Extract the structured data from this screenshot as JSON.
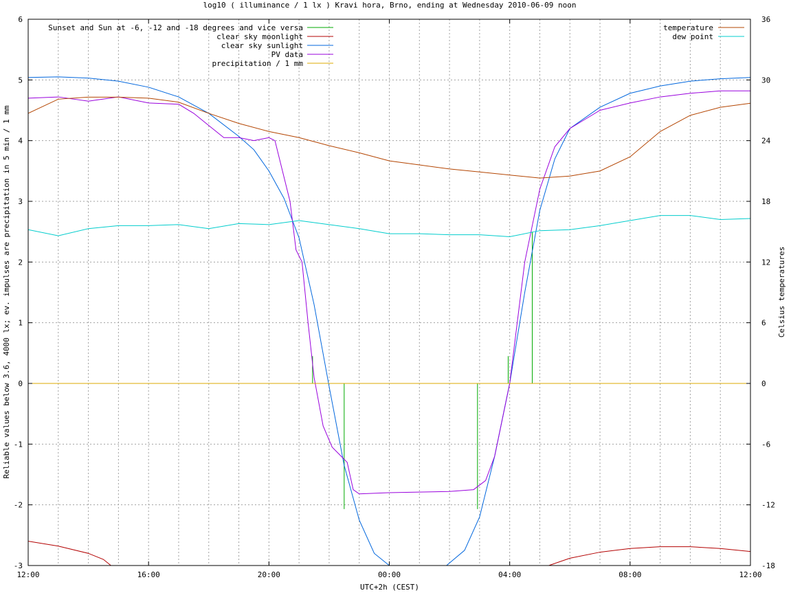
{
  "chart_data": {
    "type": "line",
    "title": "log10 ( illuminance / 1 lx ) Kravi hora, Brno, ending at Wednesday 2010-06-09 noon",
    "xlabel": "UTC+2h (CEST)",
    "ylabel": "Reliable values below 3.6, 4000 lx; ev. impulses are precipitation in 5 min / 1 mm",
    "y2label": "Celsius temperatures",
    "x_unit": "hours since 12:00",
    "xlim": [
      0,
      24
    ],
    "ylim": [
      -3,
      6
    ],
    "y2lim": [
      -18,
      36
    ],
    "x_ticks": [
      "12:00",
      "16:00",
      "20:00",
      "00:00",
      "04:00",
      "08:00",
      "12:00"
    ],
    "y_ticks": [
      "-3",
      "-2",
      "-1",
      "0",
      "1",
      "2",
      "3",
      "4",
      "5",
      "6"
    ],
    "y2_ticks": [
      "-18",
      "-12",
      "-6",
      "0",
      "6",
      "12",
      "18",
      "24",
      "30",
      "36"
    ],
    "grid": true,
    "legend_left_placement": "top-left",
    "legend_right_placement": "top-right",
    "series": [
      {
        "name": "Sunset and Sun at -6, -12 and -18 degrees and vice versa",
        "color": "#00aa00",
        "style": "impulses",
        "axis": "y1",
        "points": [
          [
            8.95,
            0
          ],
          [
            9.45,
            0.45
          ],
          [
            10.5,
            -2.07
          ],
          [
            14.93,
            -2.07
          ],
          [
            15.95,
            0.45
          ],
          [
            16.75,
            2.5
          ]
        ]
      },
      {
        "name": "clear sky moonlight",
        "color": "#b30000",
        "axis": "y1",
        "points": [
          [
            0,
            -2.6
          ],
          [
            1,
            -2.68
          ],
          [
            2,
            -2.8
          ],
          [
            2.5,
            -2.9
          ],
          [
            2.75,
            -3.0
          ]
        ],
        "points2": [
          [
            17.3,
            -3.0
          ],
          [
            18,
            -2.88
          ],
          [
            19,
            -2.78
          ],
          [
            20,
            -2.72
          ],
          [
            21,
            -2.69
          ],
          [
            22,
            -2.69
          ],
          [
            23,
            -2.72
          ],
          [
            24,
            -2.77
          ]
        ]
      },
      {
        "name": "clear sky sunlight",
        "color": "#0066dd",
        "axis": "y1",
        "points": [
          [
            0,
            5.04
          ],
          [
            1,
            5.05
          ],
          [
            2,
            5.03
          ],
          [
            3,
            4.98
          ],
          [
            4,
            4.88
          ],
          [
            5,
            4.72
          ],
          [
            6,
            4.45
          ],
          [
            7,
            4.07
          ],
          [
            7.5,
            3.85
          ],
          [
            8,
            3.5
          ],
          [
            8.5,
            3.05
          ],
          [
            9,
            2.4
          ],
          [
            9.5,
            1.3
          ],
          [
            10,
            -0.05
          ],
          [
            10.5,
            -1.35
          ],
          [
            11,
            -2.25
          ],
          [
            11.5,
            -2.8
          ],
          [
            12,
            -3.0
          ]
        ],
        "points2": [
          [
            13.9,
            -3.0
          ],
          [
            14.5,
            -2.75
          ],
          [
            15,
            -2.2
          ],
          [
            15.5,
            -1.2
          ],
          [
            16,
            0.0
          ],
          [
            16.5,
            1.5
          ],
          [
            17,
            2.85
          ],
          [
            17.5,
            3.7
          ],
          [
            18,
            4.2
          ],
          [
            19,
            4.55
          ],
          [
            20,
            4.78
          ],
          [
            21,
            4.9
          ],
          [
            22,
            4.98
          ],
          [
            23,
            5.02
          ],
          [
            24,
            5.04
          ]
        ]
      },
      {
        "name": "PV data",
        "color": "#9900dd",
        "axis": "y1",
        "points": [
          [
            0,
            4.7
          ],
          [
            1,
            4.72
          ],
          [
            2,
            4.65
          ],
          [
            3,
            4.72
          ],
          [
            4,
            4.62
          ],
          [
            5,
            4.6
          ],
          [
            5.5,
            4.45
          ],
          [
            6,
            4.25
          ],
          [
            6.5,
            4.05
          ],
          [
            7,
            4.05
          ],
          [
            7.5,
            4.0
          ],
          [
            8,
            4.05
          ],
          [
            8.2,
            4.0
          ],
          [
            8.4,
            3.6
          ],
          [
            8.7,
            3.0
          ],
          [
            8.9,
            2.2
          ],
          [
            9.1,
            2.0
          ],
          [
            9.3,
            1.0
          ],
          [
            9.5,
            0.1
          ],
          [
            9.8,
            -0.7
          ],
          [
            10.1,
            -1.05
          ],
          [
            10.4,
            -1.2
          ],
          [
            10.6,
            -1.3
          ],
          [
            10.8,
            -1.75
          ],
          [
            11,
            -1.82
          ],
          [
            12,
            -1.8
          ],
          [
            13,
            -1.79
          ],
          [
            14,
            -1.78
          ],
          [
            14.8,
            -1.75
          ],
          [
            15.2,
            -1.6
          ],
          [
            15.5,
            -1.2
          ],
          [
            16,
            0.0
          ],
          [
            16.5,
            2.0
          ],
          [
            17,
            3.2
          ],
          [
            17.5,
            3.9
          ],
          [
            18,
            4.2
          ],
          [
            18.5,
            4.35
          ],
          [
            19,
            4.5
          ],
          [
            20,
            4.62
          ],
          [
            21,
            4.72
          ],
          [
            22,
            4.78
          ],
          [
            23,
            4.82
          ],
          [
            24,
            4.82
          ]
        ]
      },
      {
        "name": "precipitation / 1 mm",
        "color": "#ddaa00",
        "axis": "y1",
        "points": [
          [
            0,
            0
          ],
          [
            24,
            0
          ]
        ]
      },
      {
        "name": "temperature",
        "color": "#b34400",
        "axis": "y2",
        "points": [
          [
            0,
            26.7
          ],
          [
            1,
            28.1
          ],
          [
            2,
            28.3
          ],
          [
            3,
            28.3
          ],
          [
            4,
            28.2
          ],
          [
            5,
            27.8
          ],
          [
            6,
            26.7
          ],
          [
            7,
            25.7
          ],
          [
            8,
            24.9
          ],
          [
            9,
            24.3
          ],
          [
            10,
            23.5
          ],
          [
            11,
            22.8
          ],
          [
            12,
            22.0
          ],
          [
            13,
            21.6
          ],
          [
            14,
            21.2
          ],
          [
            15,
            20.9
          ],
          [
            16,
            20.6
          ],
          [
            17,
            20.3
          ],
          [
            18,
            20.5
          ],
          [
            19,
            21.0
          ],
          [
            20,
            22.4
          ],
          [
            21,
            24.9
          ],
          [
            22,
            26.5
          ],
          [
            23,
            27.3
          ],
          [
            24,
            27.7
          ]
        ]
      },
      {
        "name": "dew point",
        "color": "#00cccc",
        "axis": "y2",
        "points": [
          [
            0,
            15.2
          ],
          [
            1,
            14.6
          ],
          [
            2,
            15.3
          ],
          [
            3,
            15.6
          ],
          [
            4,
            15.6
          ],
          [
            5,
            15.7
          ],
          [
            6,
            15.3
          ],
          [
            7,
            15.8
          ],
          [
            8,
            15.7
          ],
          [
            9,
            16.1
          ],
          [
            10,
            15.7
          ],
          [
            11,
            15.3
          ],
          [
            12,
            14.8
          ],
          [
            13,
            14.8
          ],
          [
            14,
            14.7
          ],
          [
            15,
            14.7
          ],
          [
            16,
            14.5
          ],
          [
            17,
            15.1
          ],
          [
            18,
            15.2
          ],
          [
            19,
            15.6
          ],
          [
            20,
            16.1
          ],
          [
            21,
            16.6
          ],
          [
            22,
            16.6
          ],
          [
            23,
            16.2
          ],
          [
            24,
            16.3
          ]
        ]
      }
    ]
  }
}
